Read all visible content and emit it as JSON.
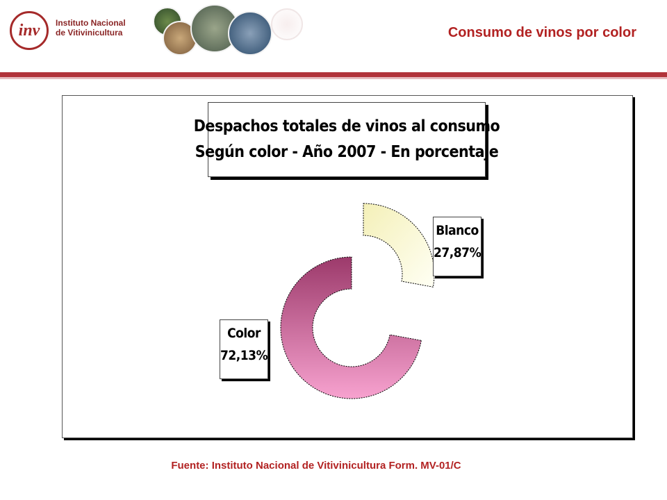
{
  "header": {
    "logo_mark": "inv",
    "logo_line1": "Instituto Nacional",
    "logo_line2": "de Vitivinicultura",
    "page_title": "Consumo de vinos por color"
  },
  "footer": {
    "source": "Fuente: Instituto Nacional de Vitivinicultura Form. MV-01/C"
  },
  "colors": {
    "accent": "#b1333a",
    "title_red": "#b22222",
    "color_slice_top": "#9c3a6b",
    "color_slice_bottom": "#f7a2cf",
    "blanco_slice_light": "#fffff0",
    "blanco_slice_dark": "#f1eeb8"
  },
  "chart_data": {
    "type": "pie",
    "style": "exploded-donut",
    "title_line1": "Despachos totales de vinos al consumo",
    "title_line2": "Según color - Año 2007 - En porcentaje",
    "slices": [
      {
        "name": "Blanco",
        "value": 27.87,
        "label": "27,87%"
      },
      {
        "name": "Color",
        "value": 72.13,
        "label": "72,13%"
      }
    ]
  }
}
